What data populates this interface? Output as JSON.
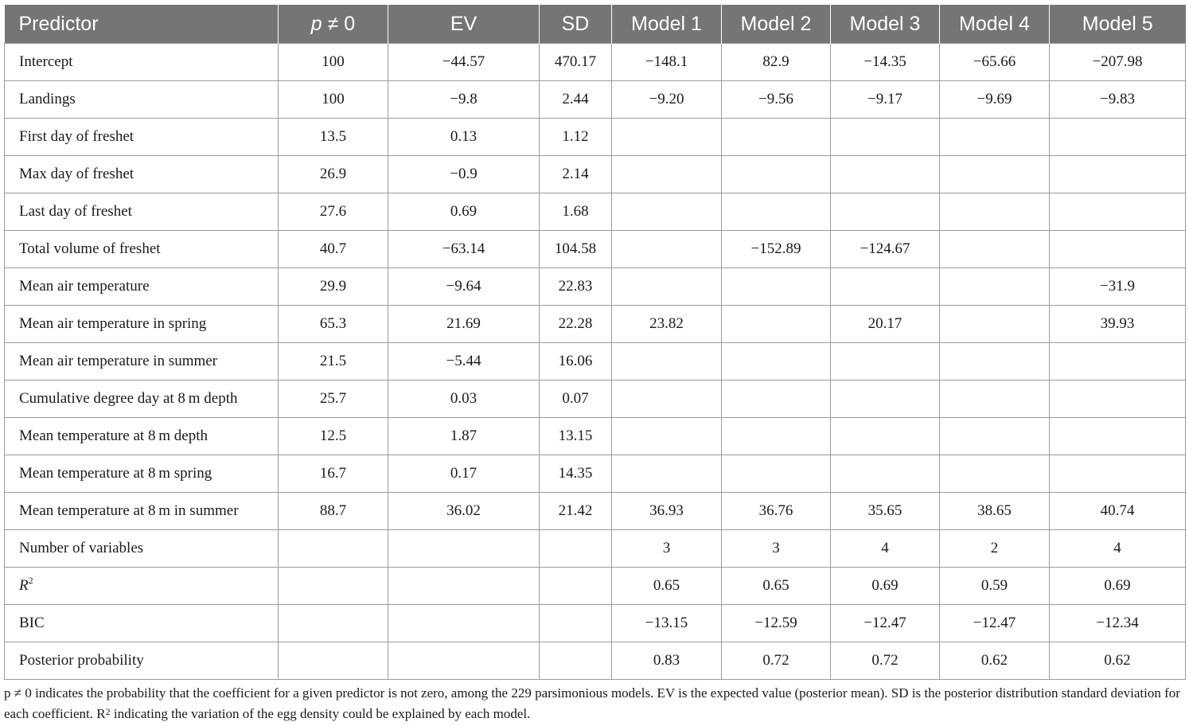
{
  "columns": [
    "Predictor",
    "p ≠ 0",
    "EV",
    "SD",
    "Model 1",
    "Model 2",
    "Model 3",
    "Model 4",
    "Model 5"
  ],
  "rows": [
    [
      "Intercept",
      "100",
      "−44.57",
      "470.17",
      "−148.1",
      "82.9",
      "−14.35",
      "−65.66",
      "−207.98"
    ],
    [
      "Landings",
      "100",
      "−9.8",
      "2.44",
      "−9.20",
      "−9.56",
      "−9.17",
      "−9.69",
      "−9.83"
    ],
    [
      "First day of freshet",
      "13.5",
      "0.13",
      "1.12",
      "",
      "",
      "",
      "",
      ""
    ],
    [
      "Max day of freshet",
      "26.9",
      "−0.9",
      "2.14",
      "",
      "",
      "",
      "",
      ""
    ],
    [
      "Last day of freshet",
      "27.6",
      "0.69",
      "1.68",
      "",
      "",
      "",
      "",
      ""
    ],
    [
      "Total volume of freshet",
      "40.7",
      "−63.14",
      "104.58",
      "",
      "−152.89",
      "−124.67",
      "",
      ""
    ],
    [
      "Mean air temperature",
      "29.9",
      "−9.64",
      "22.83",
      "",
      "",
      "",
      "",
      "−31.9"
    ],
    [
      "Mean air temperature in spring",
      "65.3",
      "21.69",
      "22.28",
      "23.82",
      "",
      "20.17",
      "",
      "39.93"
    ],
    [
      "Mean air temperature in summer",
      "21.5",
      "−5.44",
      "16.06",
      "",
      "",
      "",
      "",
      ""
    ],
    [
      "Cumulative degree day at 8 m depth",
      "25.7",
      "0.03",
      "0.07",
      "",
      "",
      "",
      "",
      ""
    ],
    [
      "Mean temperature at 8 m depth",
      "12.5",
      "1.87",
      "13.15",
      "",
      "",
      "",
      "",
      ""
    ],
    [
      "Mean temperature at 8 m spring",
      "16.7",
      "0.17",
      "14.35",
      "",
      "",
      "",
      "",
      ""
    ],
    [
      "Mean temperature at 8 m in summer",
      "88.7",
      "36.02",
      "21.42",
      "36.93",
      "36.76",
      "35.65",
      "38.65",
      "40.74"
    ],
    [
      "Number of variables",
      "",
      "",
      "",
      "3",
      "3",
      "4",
      "2",
      "4"
    ],
    [
      "R2",
      "",
      "",
      "",
      "0.65",
      "0.65",
      "0.69",
      "0.59",
      "0.69"
    ],
    [
      "BIC",
      "",
      "",
      "",
      "−13.15",
      "−12.59",
      "−12.47",
      "−12.47",
      "−12.34"
    ],
    [
      "Posterior probability",
      "",
      "",
      "",
      "0.83",
      "0.72",
      "0.72",
      "0.62",
      "0.62"
    ]
  ],
  "footnote": "p ≠  0 indicates the probability that the coefficient for a given predictor is not zero, among the 229 parsimonious models. EV is the expected value (posterior mean). SD is the posterior distribution standard deviation for each coefficient. R2 indicating the variation of the egg density could be explained by each model."
}
